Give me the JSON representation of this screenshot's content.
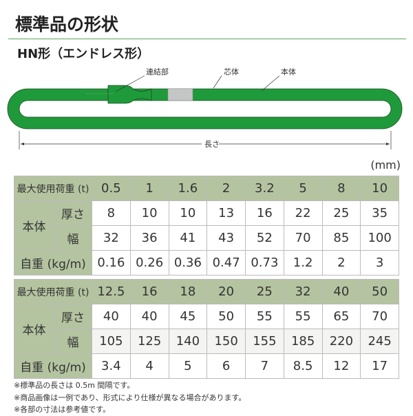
{
  "title": "標準品の形状",
  "subtitle": "HN形（エンドレス形）",
  "diagram": {
    "labels": {
      "joint": "連結部",
      "core": "芯体",
      "body": "本体",
      "length": "長さ"
    },
    "colors": {
      "sling": "#1f9a3a",
      "core": "#cccccc"
    }
  },
  "unit": "(mm)",
  "row_labels": {
    "load": "最大使用荷重 (t)",
    "body": "本体",
    "thickness": "厚さ",
    "width": "幅",
    "weight": "自重 (kg/m)"
  },
  "tables": [
    {
      "load": [
        "0.5",
        "1",
        "1.6",
        "2",
        "3.2",
        "5",
        "8",
        "10"
      ],
      "thickness": [
        "8",
        "10",
        "10",
        "13",
        "16",
        "22",
        "25",
        "35"
      ],
      "width": [
        "32",
        "36",
        "41",
        "43",
        "52",
        "70",
        "85",
        "100"
      ],
      "weight": [
        "0.16",
        "0.26",
        "0.36",
        "0.47",
        "0.73",
        "1.2",
        "2",
        "3"
      ]
    },
    {
      "load": [
        "12.5",
        "16",
        "18",
        "20",
        "25",
        "32",
        "40",
        "50"
      ],
      "thickness": [
        "40",
        "40",
        "45",
        "50",
        "55",
        "55",
        "65",
        "70"
      ],
      "width": [
        "105",
        "125",
        "140",
        "150",
        "155",
        "185",
        "220",
        "245"
      ],
      "weight": [
        "3.4",
        "4",
        "5",
        "6",
        "7",
        "8.5",
        "12",
        "17"
      ]
    }
  ],
  "notes": [
    "※標準品の長さは 0.5m 間隔です。",
    "※商品画像は一例であり、形式により仕様が異なる場合があります。",
    "※各部の寸法は参考値です。"
  ]
}
